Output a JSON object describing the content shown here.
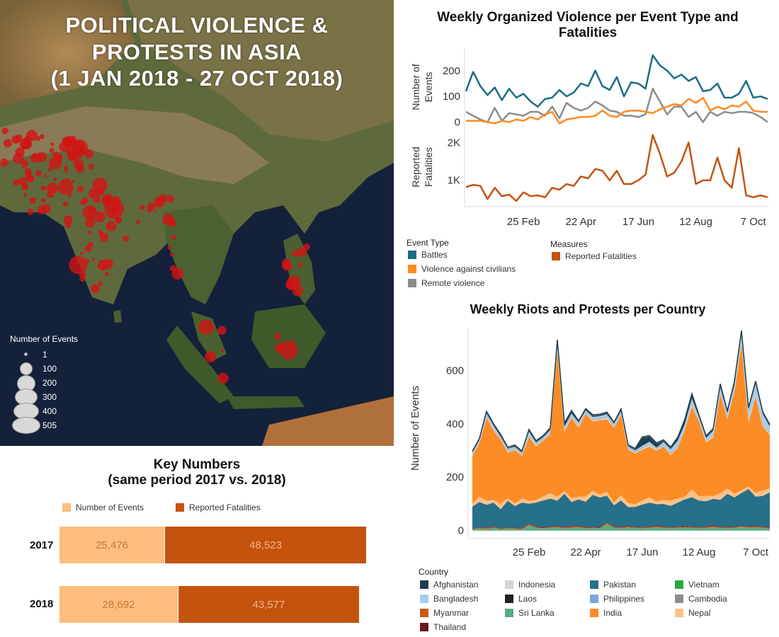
{
  "map": {
    "title_line1": "POLITICAL VIOLENCE &",
    "title_line2": "PROTESTS IN ASIA",
    "title_line3": "(1 JAN 2018 - 27 OCT 2018)",
    "legend_title": "Number of Events",
    "legend_sizes": [
      {
        "label": "1",
        "value": 1
      },
      {
        "label": "100",
        "value": 100
      },
      {
        "label": "200",
        "value": 200
      },
      {
        "label": "300",
        "value": 300
      },
      {
        "label": "400",
        "value": 400
      },
      {
        "label": "505",
        "value": 505
      }
    ],
    "colors": {
      "events": "#d21414",
      "land": "#5a6b3a",
      "sea": "#13203a"
    }
  },
  "organized": {
    "title_line1": "Weekly Organized Violence per Event Type and",
    "title_line2": "Fatalities",
    "events_axis_label_1": "Number of",
    "events_axis_label_2": "Events",
    "fat_axis_label_1": "Reported",
    "fat_axis_label_2": "Fatalities",
    "events_ticks": [
      "0",
      "100",
      "200"
    ],
    "fat_ticks": [
      "1K",
      "2K"
    ],
    "x_ticks": [
      "25 Feb",
      "22 Apr",
      "17 Jun",
      "12 Aug",
      "7 Oct"
    ],
    "legend_event_title": "Event Type",
    "legend_events": [
      {
        "name": "Battles",
        "color": "#1a6e86"
      },
      {
        "name": "Violence against civilians",
        "color": "#ff8a1f"
      },
      {
        "name": "Remote violence",
        "color": "#8c8c8c"
      }
    ],
    "legend_measure_title": "Measures",
    "legend_measure": {
      "name": "Reported Fatalities",
      "color": "#c4530e"
    }
  },
  "riots": {
    "title": "Weekly Riots and Protests per Country",
    "y_label": "Number of Events",
    "y_ticks": [
      "0",
      "200",
      "400",
      "600"
    ],
    "x_ticks": [
      "25 Feb",
      "22 Apr",
      "17 Jun",
      "12 Aug",
      "7 Oct"
    ],
    "legend_title": "Country",
    "legend": [
      {
        "name": "Afghanistan",
        "color": "#213f4c"
      },
      {
        "name": "Indonesia",
        "color": "#d4d4d4"
      },
      {
        "name": "Pakistan",
        "color": "#27708a"
      },
      {
        "name": "Vietnam",
        "color": "#2ca73c"
      },
      {
        "name": "Bangladesh",
        "color": "#a9cbe9"
      },
      {
        "name": "Laos",
        "color": "#222222"
      },
      {
        "name": "Philippines",
        "color": "#79a7d6"
      },
      {
        "name": "Cambodia",
        "color": "#8c8c8c"
      },
      {
        "name": "Myanmar",
        "color": "#c95a15"
      },
      {
        "name": "Sri Lanka",
        "color": "#5bab84"
      },
      {
        "name": "India",
        "color": "#fb8c26"
      },
      {
        "name": "Nepal",
        "color": "#fdc18a"
      },
      {
        "name": "Thailand",
        "color": "#6a1a1c"
      }
    ]
  },
  "key_numbers": {
    "title_line1": "Key Numbers",
    "title_line2": "(same period 2017 vs. 2018)",
    "legend": [
      {
        "name": "Number of Events",
        "color": "#fdbd7e"
      },
      {
        "name": "Reported Fatalities",
        "color": "#c4530e"
      }
    ],
    "rows": [
      {
        "year": "2017",
        "events": 25476,
        "events_label": "25,476",
        "fatalities": 48523,
        "fatalities_label": "48,523"
      },
      {
        "year": "2018",
        "events": 28692,
        "events_label": "28,692",
        "fatalities": 43577,
        "fatalities_label": "43,577"
      }
    ]
  },
  "chart_data": [
    {
      "type": "line",
      "title": "Weekly Organized Violence per Event Type and Fatalities",
      "ylabel": "Number of Events",
      "ylim": [
        0,
        260
      ],
      "x_ticks": [
        "25 Feb",
        "22 Apr",
        "17 Jun",
        "12 Aug",
        "7 Oct"
      ],
      "series": [
        {
          "name": "Battles",
          "values": [
            120,
            195,
            140,
            105,
            135,
            85,
            130,
            95,
            110,
            80,
            60,
            90,
            95,
            125,
            100,
            115,
            150,
            140,
            200,
            140,
            125,
            175,
            100,
            155,
            150,
            130,
            260,
            220,
            200,
            170,
            185,
            160,
            175,
            120,
            125,
            150,
            95,
            95,
            110,
            160,
            95,
            100,
            90
          ]
        },
        {
          "name": "Violence against civilians",
          "values": [
            5,
            5,
            5,
            0,
            -5,
            5,
            0,
            10,
            5,
            20,
            10,
            30,
            40,
            -5,
            10,
            15,
            20,
            20,
            25,
            45,
            25,
            20,
            40,
            45,
            45,
            40,
            35,
            50,
            60,
            70,
            65,
            90,
            75,
            95,
            45,
            60,
            50,
            65,
            60,
            80,
            45,
            40,
            40
          ]
        },
        {
          "name": "Remote violence",
          "values": [
            40,
            25,
            10,
            0,
            55,
            5,
            35,
            30,
            25,
            40,
            40,
            25,
            60,
            15,
            75,
            55,
            45,
            55,
            80,
            65,
            45,
            40,
            25,
            25,
            20,
            30,
            130,
            80,
            30,
            60,
            60,
            20,
            40,
            0,
            40,
            25,
            40,
            35,
            40,
            40,
            35,
            20,
            0
          ]
        }
      ]
    },
    {
      "type": "line",
      "ylabel": "Reported Fatalities",
      "ylim": [
        0,
        2500
      ],
      "series": [
        {
          "name": "Reported Fatalities",
          "values": [
            820,
            880,
            850,
            500,
            800,
            580,
            620,
            450,
            680,
            580,
            600,
            550,
            800,
            750,
            900,
            850,
            1100,
            1050,
            1300,
            1250,
            1000,
            1250,
            900,
            900,
            1000,
            1150,
            2200,
            1700,
            1100,
            1200,
            1500,
            2000,
            900,
            1000,
            1000,
            1600,
            1000,
            800,
            1850,
            600,
            550,
            600,
            550
          ]
        }
      ]
    },
    {
      "type": "area",
      "title": "Weekly Riots and Protests per Country",
      "ylabel": "Number of Events",
      "ylim": [
        0,
        760
      ],
      "x_ticks": [
        "25 Feb",
        "22 Apr",
        "17 Jun",
        "12 Aug",
        "7 Oct"
      ],
      "series": [
        {
          "name": "Sri Lanka",
          "values": [
            5,
            8,
            5,
            10,
            5,
            8,
            6,
            5,
            20,
            10,
            8,
            10,
            12,
            8,
            10,
            12,
            8,
            10,
            8,
            25,
            10,
            8,
            12,
            10,
            8,
            10,
            12,
            10,
            8,
            10,
            12,
            10,
            8,
            10,
            12,
            10,
            8,
            10,
            15,
            10,
            12,
            10,
            8
          ]
        },
        {
          "name": "Myanmar",
          "values": [
            3,
            2,
            4,
            3,
            3,
            2,
            3,
            3,
            4,
            3,
            2,
            3,
            3,
            3,
            4,
            3,
            3,
            2,
            3,
            4,
            3,
            3,
            3,
            2,
            3,
            3,
            4,
            3,
            3,
            3,
            2,
            3,
            3,
            3,
            4,
            3,
            3,
            2,
            3,
            4,
            3,
            3,
            3
          ]
        },
        {
          "name": "Thailand",
          "values": [
            2,
            2,
            3,
            2,
            2,
            2,
            3,
            2,
            2,
            2,
            3,
            2,
            2,
            2,
            3,
            2,
            2,
            2,
            3,
            2,
            2,
            2,
            3,
            2,
            2,
            2,
            3,
            2,
            2,
            2,
            3,
            2,
            2,
            2,
            3,
            2,
            2,
            2,
            3,
            2,
            2,
            2,
            2
          ]
        },
        {
          "name": "Pakistan",
          "values": [
            80,
            95,
            85,
            90,
            70,
            100,
            80,
            95,
            75,
            90,
            100,
            105,
            95,
            125,
            90,
            100,
            95,
            120,
            110,
            100,
            80,
            100,
            70,
            75,
            85,
            90,
            80,
            85,
            80,
            90,
            100,
            110,
            100,
            95,
            100,
            100,
            125,
            110,
            120,
            140,
            110,
            115,
            130
          ]
        },
        {
          "name": "Nepal",
          "values": [
            10,
            20,
            15,
            10,
            20,
            10,
            10,
            15,
            10,
            10,
            15,
            20,
            15,
            10,
            15,
            10,
            20,
            15,
            10,
            15,
            10,
            20,
            15,
            10,
            15,
            20,
            10,
            15,
            20,
            15,
            10,
            30,
            15,
            20,
            10,
            25,
            20,
            15,
            10,
            10,
            15,
            20,
            15
          ]
        },
        {
          "name": "India",
          "values": [
            180,
            200,
            310,
            260,
            240,
            170,
            200,
            160,
            240,
            200,
            210,
            220,
            550,
            220,
            300,
            260,
            310,
            260,
            280,
            270,
            280,
            300,
            200,
            190,
            190,
            190,
            190,
            200,
            170,
            190,
            250,
            310,
            280,
            200,
            220,
            370,
            260,
            380,
            550,
            240,
            360,
            240,
            200
          ]
        },
        {
          "name": "Indonesia",
          "values": [
            5,
            5,
            5,
            8,
            5,
            5,
            5,
            5,
            8,
            5,
            5,
            5,
            10,
            5,
            5,
            8,
            5,
            5,
            5,
            8,
            5,
            5,
            5,
            5,
            5,
            8,
            5,
            5,
            5,
            5,
            5,
            8,
            5,
            5,
            8,
            5,
            5,
            5,
            8,
            5,
            5,
            5,
            5
          ]
        },
        {
          "name": "Cambodia",
          "values": [
            2,
            2,
            2,
            2,
            2,
            2,
            2,
            2,
            2,
            2,
            2,
            2,
            2,
            2,
            2,
            2,
            2,
            2,
            2,
            2,
            2,
            2,
            2,
            2,
            2,
            2,
            2,
            2,
            2,
            2,
            2,
            2,
            2,
            2,
            2,
            2,
            2,
            2,
            2,
            2,
            2,
            2,
            2
          ]
        },
        {
          "name": "Bangladesh",
          "values": [
            5,
            5,
            10,
            8,
            5,
            8,
            5,
            5,
            10,
            8,
            5,
            10,
            20,
            15,
            10,
            8,
            5,
            10,
            8,
            10,
            8,
            8,
            5,
            5,
            8,
            8,
            5,
            10,
            15,
            20,
            15,
            20,
            10,
            10,
            15,
            20,
            15,
            20,
            30,
            40,
            40,
            40,
            25
          ]
        },
        {
          "name": "Afghanistan",
          "values": [
            2,
            3,
            5,
            4,
            5,
            2,
            4,
            3,
            5,
            4,
            3,
            5,
            3,
            10,
            8,
            3,
            4,
            5,
            4,
            5,
            3,
            5,
            3,
            4,
            30,
            20,
            15,
            5,
            5,
            10,
            15,
            15,
            5,
            5,
            5,
            10,
            5,
            10,
            5,
            5,
            8,
            5,
            5
          ]
        },
        {
          "name": "Philippines",
          "values": [
            2,
            2,
            2,
            2,
            2,
            2,
            2,
            2,
            2,
            2,
            2,
            2,
            2,
            2,
            2,
            2,
            2,
            2,
            2,
            2,
            2,
            2,
            2,
            2,
            2,
            2,
            2,
            2,
            2,
            2,
            2,
            2,
            2,
            2,
            2,
            2,
            2,
            2,
            2,
            2,
            2,
            2,
            2
          ]
        },
        {
          "name": "Laos",
          "values": [
            0,
            0,
            0,
            0,
            0,
            0,
            0,
            0,
            0,
            0,
            0,
            0,
            0,
            0,
            0,
            0,
            0,
            0,
            0,
            0,
            0,
            0,
            0,
            0,
            0,
            0,
            0,
            0,
            0,
            0,
            0,
            0,
            0,
            0,
            0,
            0,
            0,
            0,
            0,
            0,
            0,
            0,
            0
          ]
        },
        {
          "name": "Vietnam",
          "values": [
            1,
            1,
            1,
            1,
            1,
            1,
            1,
            1,
            1,
            1,
            1,
            1,
            1,
            1,
            1,
            1,
            1,
            1,
            1,
            1,
            1,
            1,
            1,
            1,
            1,
            1,
            1,
            1,
            1,
            1,
            1,
            1,
            1,
            1,
            1,
            1,
            1,
            1,
            1,
            1,
            1,
            1,
            1
          ]
        }
      ]
    },
    {
      "type": "bar",
      "title": "Key Numbers (same period 2017 vs. 2018)",
      "categories": [
        "2017",
        "2018"
      ],
      "series": [
        {
          "name": "Number of Events",
          "values": [
            25476,
            28692
          ]
        },
        {
          "name": "Reported Fatalities",
          "values": [
            48523,
            43577
          ]
        }
      ]
    }
  ]
}
